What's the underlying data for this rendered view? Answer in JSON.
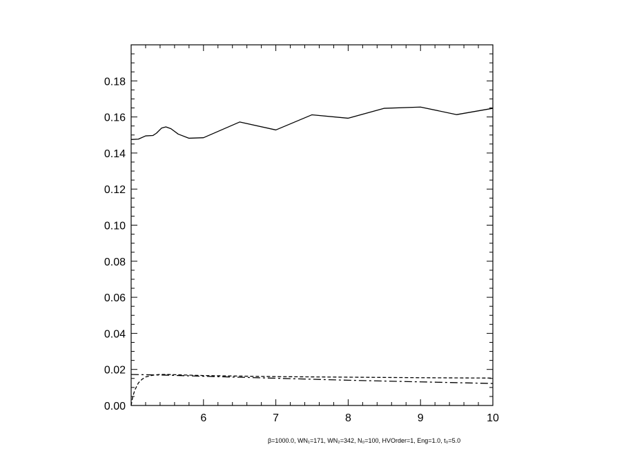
{
  "chart_data": {
    "type": "line",
    "title": "",
    "xlabel": "",
    "ylabel": "",
    "xlim": [
      5.0,
      10.0
    ],
    "ylim": [
      0.0,
      0.2
    ],
    "x_ticks": [
      6,
      7,
      8,
      9,
      10
    ],
    "y_ticks": [
      0.0,
      0.02,
      0.04,
      0.06,
      0.08,
      0.1,
      0.12,
      0.14,
      0.16,
      0.18
    ],
    "x_tick_labels": [
      "6",
      "7",
      "8",
      "9",
      "10"
    ],
    "y_tick_labels": [
      "0.00",
      "0.02",
      "0.04",
      "0.06",
      "0.08",
      "0.10",
      "0.12",
      "0.14",
      "0.16",
      "0.18"
    ],
    "grid": false,
    "series": [
      {
        "style": "solid",
        "x": [
          5.0,
          5.1,
          5.2,
          5.3,
          5.35,
          5.42,
          5.48,
          5.55,
          5.65,
          5.8,
          6.0,
          6.5,
          7.0,
          7.5,
          8.0,
          8.5,
          9.0,
          9.5,
          10.0
        ],
        "y": [
          0.1475,
          0.1477,
          0.1495,
          0.1497,
          0.151,
          0.1538,
          0.1545,
          0.1535,
          0.1505,
          0.1482,
          0.1485,
          0.1572,
          0.1528,
          0.1612,
          0.1593,
          0.1648,
          0.1655,
          0.1613,
          0.1648
        ]
      },
      {
        "style": "dashed",
        "x": [
          5.0,
          5.02,
          5.05,
          5.1,
          5.15,
          5.2,
          5.3,
          5.4,
          5.5,
          6.0,
          7.0,
          8.0,
          9.0,
          10.0
        ],
        "y": [
          0.0,
          0.0045,
          0.0085,
          0.0125,
          0.0145,
          0.0158,
          0.0168,
          0.0172,
          0.0172,
          0.0166,
          0.016,
          0.0157,
          0.0154,
          0.0152
        ]
      },
      {
        "style": "dash-dot",
        "x": [
          5.0,
          5.5,
          6.0,
          7.0,
          8.0,
          9.0,
          10.0
        ],
        "y": [
          0.0172,
          0.0168,
          0.0162,
          0.0151,
          0.014,
          0.0131,
          0.0122
        ]
      }
    ],
    "annotation": "β=1000.0, WN₁=171, WN₂=342, N₀=100, HVOrder=1, Eng=1.0, t₀=5.0"
  }
}
